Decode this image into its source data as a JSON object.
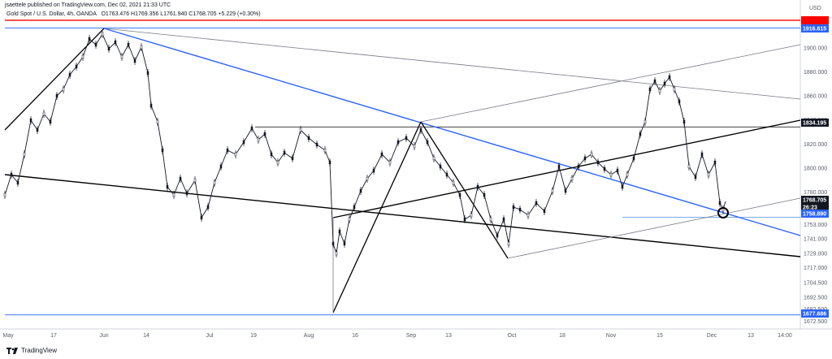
{
  "header": {
    "published": "jsaettele published on TradingView.com, Dec 02, 2021 21:33 UTC",
    "symbol_line": "Gold Spot / U.S. Dollar, 4h, OANDA",
    "ohlc": "O1763.476 H1769.356 L1761.940 C1768.705 +5.229 (+0.30%)"
  },
  "footer": {
    "logo_text": "TradingView"
  },
  "axis": {
    "currency": "USD",
    "y_ticks": [
      "1900.000",
      "1880.000",
      "1860.000",
      "1840.000",
      "1820.000",
      "1800.000",
      "1780.000",
      "1753.000",
      "1741.000",
      "1729.000",
      "1717.000",
      "1704.500",
      "1692.500",
      "1682.500",
      "1672.500"
    ],
    "x_ticks": [
      "May",
      "17",
      "Jun",
      "14",
      "Jul",
      "19",
      "Aug",
      "16",
      "Sep",
      "13",
      "Oct",
      "18",
      "Nov",
      "15",
      "Dec",
      "13",
      "14:00"
    ]
  },
  "price_badges": {
    "top": "1916.615",
    "mid": "1834.195",
    "current": "1768.705",
    "countdown": "26:23",
    "support": "1758.890",
    "bottom": "1677.686"
  },
  "colors": {
    "candle": "#131722",
    "blue_line": "#2962ff",
    "red_line": "#ff0000",
    "black_line": "#000000",
    "grey_line": "#787b86",
    "badge_blue": "#2962ff",
    "badge_dark": "#131722"
  },
  "chart_data": {
    "type": "line",
    "title": "Gold Spot / U.S. Dollar, 4h, OANDA",
    "xlabel": "",
    "ylabel": "",
    "ylim": [
      1668,
      1925
    ],
    "x": [
      "May",
      "17",
      "Jun",
      "14",
      "Jul",
      "19",
      "Aug",
      "16",
      "Sep",
      "13",
      "Oct",
      "18",
      "Nov",
      "15",
      "Dec"
    ],
    "series": [
      {
        "name": "",
        "values": [
          1790,
          1840,
          1905,
          1880,
          1775,
          1810,
          1800,
          1755,
          1815,
          1825,
          1760,
          1785,
          1800,
          1870,
          1768.7
        ]
      }
    ],
    "horizontal_levels": [
      1923,
      1916.615,
      1834.195,
      1758.89,
      1677.686
    ]
  }
}
